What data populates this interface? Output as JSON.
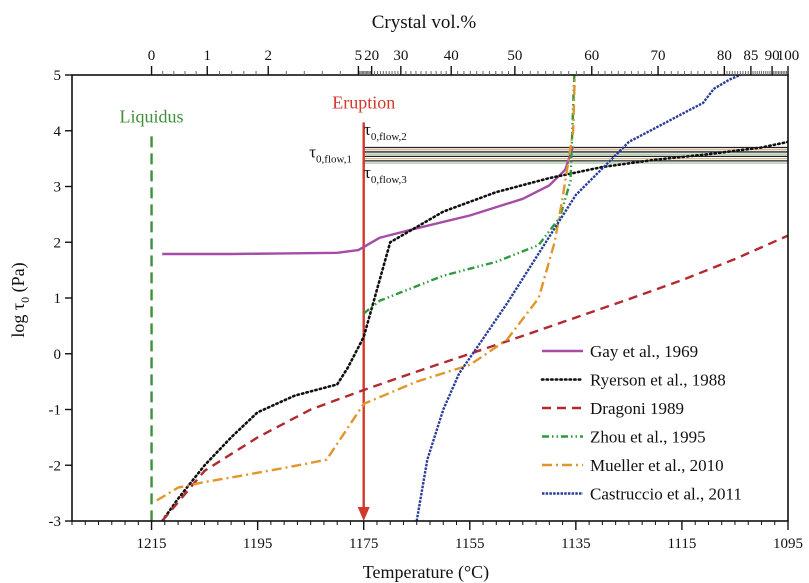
{
  "chart_data": {
    "type": "line",
    "title": "",
    "xlabel": "Temperature (°C)",
    "ylabel": "log τ0 (Pa)",
    "x2label": "Crystal vol.%",
    "xlim": [
      1230,
      1095
    ],
    "ylim": [
      -3,
      5
    ],
    "x_ticks": [
      1215,
      1195,
      1175,
      1155,
      1135,
      1115,
      1095
    ],
    "y_ticks": [
      -3,
      -2,
      -1,
      0,
      1,
      2,
      3,
      4,
      5
    ],
    "top_axis": {
      "ticks": [
        {
          "label": "0",
          "T": 1215.0
        },
        {
          "label": "1",
          "T": 1204.5
        },
        {
          "label": "2",
          "T": 1193.0
        },
        {
          "label": "5",
          "T": 1176.0
        },
        {
          "label": "20",
          "T": 1173.5
        },
        {
          "label": "30",
          "T": 1168.0
        },
        {
          "label": "40",
          "T": 1158.5
        },
        {
          "label": "50",
          "T": 1146.5
        },
        {
          "label": "60",
          "T": 1132.0
        },
        {
          "label": "70",
          "T": 1119.5
        },
        {
          "label": "80",
          "T": 1107.0
        },
        {
          "label": "85",
          "T": 1102.0
        },
        {
          "label": "90",
          "T": 1098.0
        },
        {
          "label": "100",
          "T": 1095.0
        }
      ]
    },
    "liquidus": {
      "label": "Liquidus",
      "T": 1215,
      "y_max": 3.9
    },
    "eruption": {
      "label": "Eruption",
      "T": 1175,
      "y_max": 4.15
    },
    "yield_band": {
      "labels": [
        "τ0,flow,2",
        "τ0,flow,1",
        "τ0,flow,3"
      ],
      "lines": [
        {
          "y": 3.7,
          "color": "#222222"
        },
        {
          "y": 3.66,
          "color": "#d9b98f"
        },
        {
          "y": 3.62,
          "color": "#222222"
        },
        {
          "y": 3.58,
          "color": "#a9c9a0"
        },
        {
          "y": 3.54,
          "color": "#222222"
        },
        {
          "y": 3.5,
          "color": "#d9b98f"
        },
        {
          "y": 3.46,
          "color": "#222222"
        },
        {
          "y": 3.42,
          "color": "#a9c9a0"
        }
      ]
    },
    "legend_position": "bottom-right",
    "series": [
      {
        "name": "Gay et al., 1969",
        "color": "#a64ca6",
        "dash": "solid",
        "x": [
          1213,
          1200,
          1190,
          1180,
          1176,
          1172,
          1165,
          1155,
          1145,
          1140,
          1137,
          1135.5
        ],
        "y": [
          1.79,
          1.79,
          1.8,
          1.81,
          1.86,
          2.08,
          2.25,
          2.48,
          2.78,
          3.02,
          3.3,
          3.72
        ]
      },
      {
        "name": "Ryerson et al., 1988",
        "color": "#111111",
        "dash": "dotted",
        "x": [
          1213,
          1210,
          1205,
          1200,
          1195,
          1188,
          1180,
          1178,
          1175,
          1170,
          1160,
          1150,
          1140,
          1130,
          1120,
          1110,
          1100,
          1095
        ],
        "y": [
          -3.0,
          -2.6,
          -2.0,
          -1.5,
          -1.05,
          -0.75,
          -0.55,
          -0.25,
          0.3,
          2.0,
          2.55,
          2.9,
          3.15,
          3.35,
          3.48,
          3.58,
          3.7,
          3.8
        ]
      },
      {
        "name": "Dragoni 1989",
        "color": "#b02a30",
        "dash": "dashed",
        "x": [
          1213,
          1205,
          1195,
          1185,
          1175,
          1165,
          1155,
          1145,
          1135,
          1125,
          1115,
          1105,
          1095
        ],
        "y": [
          -3.0,
          -2.1,
          -1.5,
          -1.0,
          -0.65,
          -0.32,
          0.0,
          0.32,
          0.65,
          0.98,
          1.32,
          1.7,
          2.12
        ]
      },
      {
        "name": "Zhou et al., 1995",
        "color": "#2e9a3c",
        "dash": "dashdotdot",
        "x": [
          1175,
          1172,
          1168,
          1160,
          1150,
          1142,
          1138,
          1136,
          1135.3
        ],
        "y": [
          0.72,
          0.95,
          1.1,
          1.4,
          1.65,
          1.95,
          2.45,
          3.1,
          5.0
        ]
      },
      {
        "name": "Mueller et al., 2010",
        "color": "#e0962a",
        "dash": "dashdot",
        "x": [
          1214,
          1210,
          1205,
          1200,
          1190,
          1182,
          1175,
          1165,
          1155,
          1148,
          1142,
          1139,
          1137.5,
          1136.5,
          1135.5,
          1135.2
        ],
        "y": [
          -2.63,
          -2.4,
          -2.3,
          -2.22,
          -2.05,
          -1.9,
          -0.9,
          -0.5,
          -0.2,
          0.25,
          1.0,
          2.0,
          2.8,
          3.4,
          4.0,
          5.0
        ]
      },
      {
        "name": "Castruccio et al., 2011",
        "color": "#2a3c9a",
        "dash": "dashfine",
        "x": [
          1165,
          1163,
          1160,
          1157,
          1153,
          1148,
          1143,
          1135,
          1125,
          1118,
          1114,
          1111,
          1109,
          1106,
          1104
        ],
        "y": [
          -3.0,
          -1.9,
          -1.0,
          -0.35,
          0.2,
          0.9,
          1.65,
          2.85,
          3.8,
          4.15,
          4.35,
          4.5,
          4.75,
          4.92,
          5.0
        ]
      }
    ]
  }
}
